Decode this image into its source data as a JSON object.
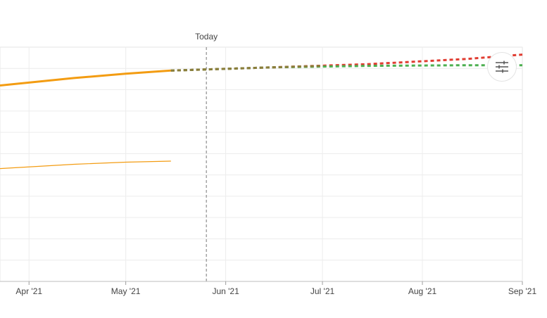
{
  "chart_data": {
    "type": "line",
    "x_ticks": [
      "Apr '21",
      "May '21",
      "Jun '21",
      "Jul '21",
      "Aug '21",
      "Sep '21"
    ],
    "xlim": [
      "2021-03-23",
      "2021-09-01"
    ],
    "ylim": [
      0,
      11
    ],
    "grid": true,
    "today_marker": {
      "label": "Today",
      "date": "2021-05-26"
    },
    "series": [
      {
        "color": "#f39c12",
        "style": "solid-thick",
        "points": [
          {
            "x": "2021-03-23",
            "y": 9.2
          },
          {
            "x": "2021-04-15",
            "y": 9.55
          },
          {
            "x": "2021-05-01",
            "y": 9.75
          },
          {
            "x": "2021-05-15",
            "y": 9.9
          }
        ]
      },
      {
        "color": "#f39c12",
        "style": "solid-thin",
        "points": [
          {
            "x": "2021-03-23",
            "y": 5.3
          },
          {
            "x": "2021-04-15",
            "y": 5.5
          },
          {
            "x": "2021-05-01",
            "y": 5.6
          },
          {
            "x": "2021-05-15",
            "y": 5.65
          }
        ]
      },
      {
        "color": "#e03c31",
        "style": "dashed",
        "points": [
          {
            "x": "2021-05-15",
            "y": 9.9
          },
          {
            "x": "2021-06-15",
            "y": 10.05
          },
          {
            "x": "2021-07-15",
            "y": 10.2
          },
          {
            "x": "2021-08-15",
            "y": 10.45
          },
          {
            "x": "2021-09-01",
            "y": 10.65
          }
        ]
      },
      {
        "color": "#4caf50",
        "style": "dashed",
        "points": [
          {
            "x": "2021-05-15",
            "y": 9.9
          },
          {
            "x": "2021-06-15",
            "y": 10.05
          },
          {
            "x": "2021-07-15",
            "y": 10.12
          },
          {
            "x": "2021-08-15",
            "y": 10.15
          },
          {
            "x": "2021-09-01",
            "y": 10.15
          }
        ]
      },
      {
        "color": "#8a7d3a",
        "style": "dashed",
        "points": [
          {
            "x": "2021-05-15",
            "y": 9.9
          },
          {
            "x": "2021-06-15",
            "y": 10.05
          },
          {
            "x": "2021-07-01",
            "y": 10.12
          }
        ]
      }
    ]
  },
  "controls": {
    "settings_icon": "sliders-icon"
  }
}
